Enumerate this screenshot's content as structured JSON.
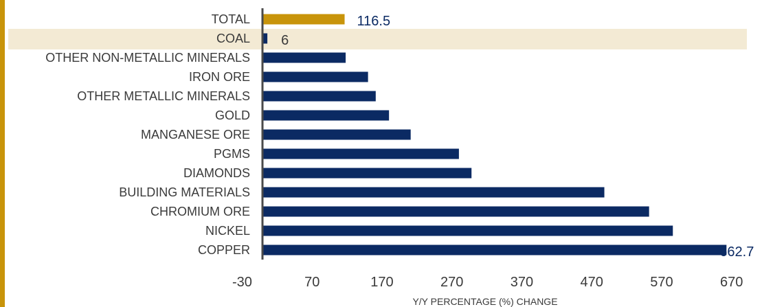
{
  "colors": {
    "bar": "#0b2a63",
    "total_bar": "#c8940a",
    "highlight_band": "#f3ead4",
    "axis": "#4a4a4a",
    "label_text": "#3a3a3a",
    "value_text": "#0b2a63",
    "left_stripe": "#c8940a"
  },
  "chart_data": {
    "type": "bar",
    "orientation": "horizontal",
    "categories": [
      "TOTAL",
      "COAL",
      "OTHER NON-METALLIC MINERALS",
      "IRON ORE",
      "OTHER METALLIC MINERALS",
      "GOLD",
      "MANGANESE ORE",
      "PGMS",
      "DIAMONDS",
      "BUILDING MATERIALS",
      "CHROMIUM ORE",
      "NICKEL",
      "COPPER"
    ],
    "values": [
      116.5,
      6,
      118,
      150,
      161,
      180,
      211,
      280,
      298,
      488,
      552,
      586,
      662.7
    ],
    "data_labels": {
      "TOTAL": "116.5",
      "COAL": "6",
      "COPPER": "662.7"
    },
    "highlighted_category": "COAL",
    "xlabel": "Y/Y PERCENTAGE (%) CHANGE",
    "ylabel": "",
    "xlim": [
      -30,
      670
    ],
    "xticks": [
      -30,
      70,
      170,
      270,
      370,
      470,
      570,
      670
    ],
    "grid": false,
    "legend": "none"
  }
}
